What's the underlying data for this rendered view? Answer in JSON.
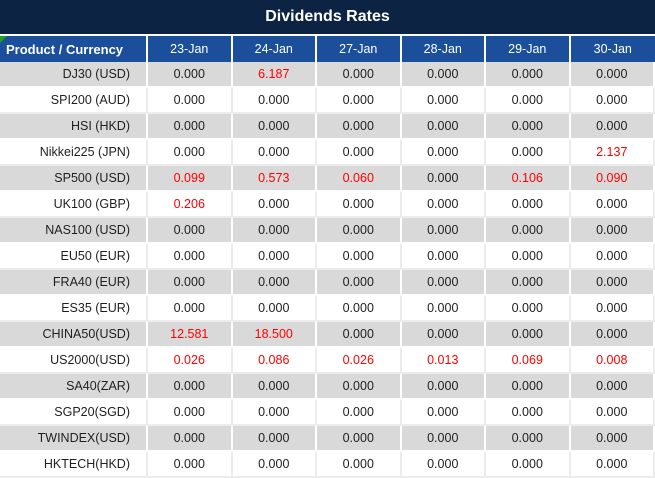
{
  "title": "Dividends Rates",
  "chart_data": {
    "type": "table",
    "title": "Dividends Rates",
    "product_header": "Product / Currency",
    "columns": [
      "23-Jan",
      "24-Jan",
      "27-Jan",
      "28-Jan",
      "29-Jan",
      "30-Jan"
    ],
    "rows": [
      {
        "product": "DJ30 (USD)",
        "values": [
          "0.000",
          "6.187",
          "0.000",
          "0.000",
          "0.000",
          "0.000"
        ],
        "red": [
          1
        ]
      },
      {
        "product": "SPI200 (AUD)",
        "values": [
          "0.000",
          "0.000",
          "0.000",
          "0.000",
          "0.000",
          "0.000"
        ],
        "red": []
      },
      {
        "product": "HSI (HKD)",
        "values": [
          "0.000",
          "0.000",
          "0.000",
          "0.000",
          "0.000",
          "0.000"
        ],
        "red": []
      },
      {
        "product": "Nikkei225 (JPN)",
        "values": [
          "0.000",
          "0.000",
          "0.000",
          "0.000",
          "0.000",
          "2.137"
        ],
        "red": [
          5
        ]
      },
      {
        "product": "SP500 (USD)",
        "values": [
          "0.099",
          "0.573",
          "0.060",
          "0.000",
          "0.106",
          "0.090"
        ],
        "red": [
          0,
          1,
          2,
          4,
          5
        ]
      },
      {
        "product": "UK100 (GBP)",
        "values": [
          "0.206",
          "0.000",
          "0.000",
          "0.000",
          "0.000",
          "0.000"
        ],
        "red": [
          0
        ]
      },
      {
        "product": "NAS100 (USD)",
        "values": [
          "0.000",
          "0.000",
          "0.000",
          "0.000",
          "0.000",
          "0.000"
        ],
        "red": []
      },
      {
        "product": "EU50 (EUR)",
        "values": [
          "0.000",
          "0.000",
          "0.000",
          "0.000",
          "0.000",
          "0.000"
        ],
        "red": []
      },
      {
        "product": "FRA40 (EUR)",
        "values": [
          "0.000",
          "0.000",
          "0.000",
          "0.000",
          "0.000",
          "0.000"
        ],
        "red": []
      },
      {
        "product": "ES35 (EUR)",
        "values": [
          "0.000",
          "0.000",
          "0.000",
          "0.000",
          "0.000",
          "0.000"
        ],
        "red": []
      },
      {
        "product": "CHINA50(USD)",
        "values": [
          "12.581",
          "18.500",
          "0.000",
          "0.000",
          "0.000",
          "0.000"
        ],
        "red": [
          0,
          1
        ]
      },
      {
        "product": "US2000(USD)",
        "values": [
          "0.026",
          "0.086",
          "0.026",
          "0.013",
          "0.069",
          "0.008"
        ],
        "red": [
          0,
          1,
          2,
          3,
          4,
          5
        ]
      },
      {
        "product": "SA40(ZAR)",
        "values": [
          "0.000",
          "0.000",
          "0.000",
          "0.000",
          "0.000",
          "0.000"
        ],
        "red": []
      },
      {
        "product": "SGP20(SGD)",
        "values": [
          "0.000",
          "0.000",
          "0.000",
          "0.000",
          "0.000",
          "0.000"
        ],
        "red": []
      },
      {
        "product": "TWINDEX(USD)",
        "values": [
          "0.000",
          "0.000",
          "0.000",
          "0.000",
          "0.000",
          "0.000"
        ],
        "red": []
      },
      {
        "product": "HKTECH(HKD)",
        "values": [
          "0.000",
          "0.000",
          "0.000",
          "0.000",
          "0.000",
          "0.000"
        ],
        "red": []
      }
    ]
  },
  "colors": {
    "title_bg": "#0d2344",
    "header_bg": "#1b4f9c",
    "header_text": "#ffffff",
    "row_alt_bg": "#d9d9d9",
    "grid_line": "#ececec",
    "text_dark": "#1f1f1f",
    "value_red": "#ff0000",
    "marker_green": "#21a121"
  }
}
